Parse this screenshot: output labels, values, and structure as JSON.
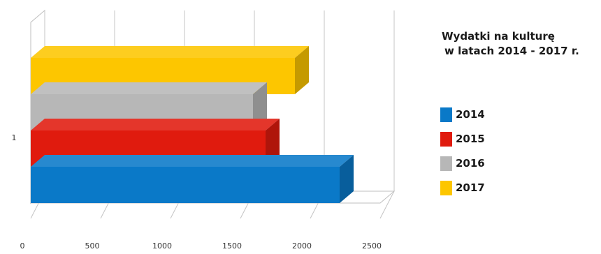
{
  "chart_data": {
    "type": "bar",
    "orientation": "horizontal",
    "style": "3d",
    "title_line1": "Wydatki na kulturę",
    "title_line2": "w latach 2014 - 2017 r.",
    "categories": [
      "1"
    ],
    "series": [
      {
        "name": "2014",
        "values": [
          2210
        ],
        "color": "#0a79c8"
      },
      {
        "name": "2015",
        "values": [
          1680
        ],
        "color": "#e01b0e"
      },
      {
        "name": "2016",
        "values": [
          1590
        ],
        "color": "#b7b7b7"
      },
      {
        "name": "2017",
        "values": [
          1890
        ],
        "color": "#fdc600"
      }
    ],
    "x_ticks": [
      "0",
      "500",
      "1000",
      "1500",
      "2000",
      "2500"
    ],
    "xlim": [
      0,
      2500
    ],
    "grid": true,
    "legend_position": "right"
  }
}
